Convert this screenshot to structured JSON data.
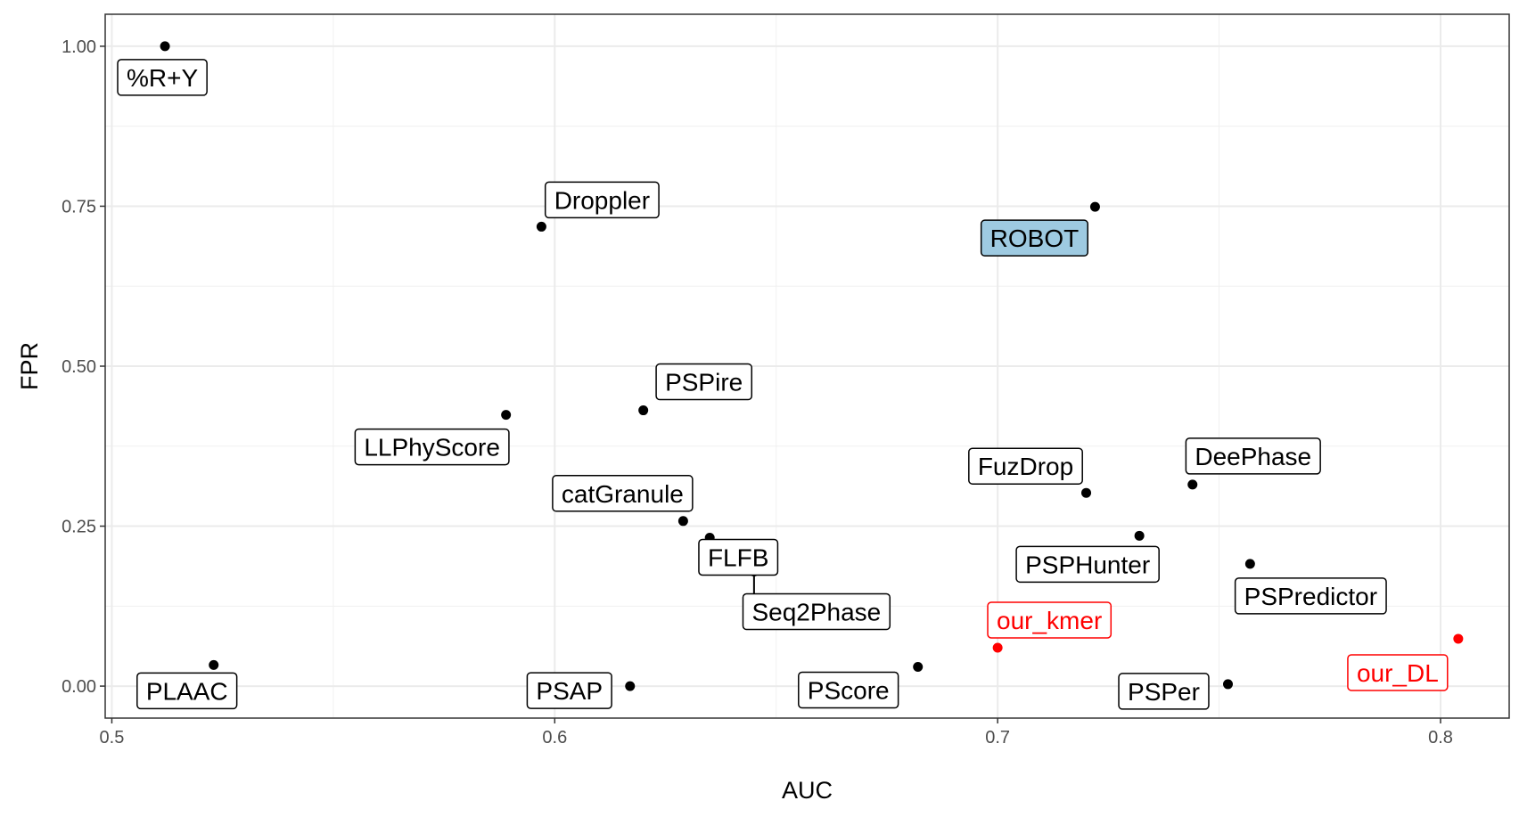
{
  "chart_data": {
    "type": "scatter",
    "title": "",
    "xlabel": "AUC",
    "ylabel": "FPR",
    "xlim": [
      0.4985,
      0.8155
    ],
    "ylim": [
      -0.05,
      1.05
    ],
    "xticks": [
      0.5,
      0.6,
      0.7,
      0.8
    ],
    "xtick_labels": [
      "0.5",
      "0.6",
      "0.7",
      "0.8"
    ],
    "yticks": [
      0.0,
      0.25,
      0.5,
      0.75,
      1.0
    ],
    "ytick_labels": [
      "0.00",
      "0.25",
      "0.50",
      "0.75",
      "1.00"
    ],
    "grid": true,
    "colors": {
      "default": "#000000",
      "highlight": "#ff0000",
      "robot_fill": "#9ecae1"
    },
    "points": [
      {
        "label": "%R+Y",
        "x": 0.512,
        "y": 1.0,
        "color": "default"
      },
      {
        "label": "Droppler",
        "x": 0.597,
        "y": 0.718,
        "color": "default"
      },
      {
        "label": "ROBOT",
        "x": 0.722,
        "y": 0.749,
        "color": "default",
        "fill": "robot_fill"
      },
      {
        "label": "PSPire",
        "x": 0.62,
        "y": 0.431,
        "color": "default"
      },
      {
        "label": "LLPhyScore",
        "x": 0.589,
        "y": 0.424,
        "color": "default"
      },
      {
        "label": "FuzDrop",
        "x": 0.72,
        "y": 0.302,
        "color": "default"
      },
      {
        "label": "DeePhase",
        "x": 0.744,
        "y": 0.315,
        "color": "default"
      },
      {
        "label": "catGranule",
        "x": 0.629,
        "y": 0.258,
        "color": "default"
      },
      {
        "label": "PSPHunter",
        "x": 0.732,
        "y": 0.235,
        "color": "default"
      },
      {
        "label": "FLFB",
        "x": 0.635,
        "y": 0.232,
        "color": "default"
      },
      {
        "label": "PSPredictor",
        "x": 0.757,
        "y": 0.191,
        "color": "default"
      },
      {
        "label": "Seq2Phase",
        "x": 0.645,
        "y": 0.179,
        "color": "default"
      },
      {
        "label": "our_kmer",
        "x": 0.7,
        "y": 0.06,
        "color": "highlight"
      },
      {
        "label": "our_DL",
        "x": 0.804,
        "y": 0.074,
        "color": "highlight"
      },
      {
        "label": "PLAAC",
        "x": 0.523,
        "y": 0.033,
        "color": "default"
      },
      {
        "label": "PSAP",
        "x": 0.617,
        "y": 0.0,
        "color": "default"
      },
      {
        "label": "PScore",
        "x": 0.682,
        "y": 0.03,
        "color": "default"
      },
      {
        "label": "PSPer",
        "x": 0.752,
        "y": 0.003,
        "color": "default"
      }
    ]
  }
}
